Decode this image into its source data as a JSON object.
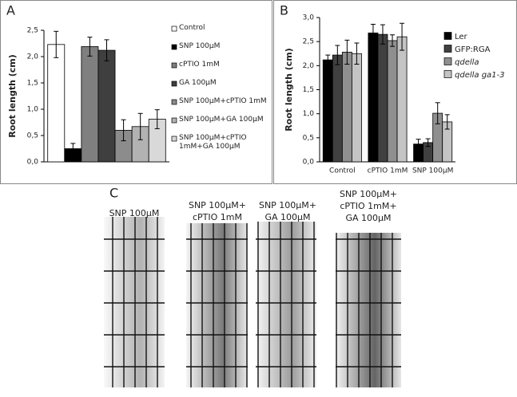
{
  "chart_data": [
    {
      "type": "bar",
      "ylabel": "Root length (cm)",
      "categories": [
        null
      ],
      "ylim": [
        0,
        2.5
      ],
      "yticks": [
        {
          "value": 0,
          "label": "0,0"
        },
        {
          "value": 0.5,
          "label": "0,5"
        },
        {
          "value": 1,
          "label": "1,0"
        },
        {
          "value": 1.5,
          "label": "1,5"
        },
        {
          "value": 2,
          "label": "2,0"
        },
        {
          "value": 2.5,
          "label": "2,5"
        }
      ],
      "series": [
        {
          "name": "Control",
          "color": "#ffffff",
          "values": [
            2.23
          ],
          "errors": [
            0.25
          ]
        },
        {
          "name": "SNP 100µM",
          "color": "#000000",
          "values": [
            0.25
          ],
          "errors": [
            0.1
          ]
        },
        {
          "name": "cPTIO 1mM",
          "color": "#7f7f7f",
          "values": [
            2.19
          ],
          "errors": [
            0.18
          ]
        },
        {
          "name": "GA 100µM",
          "color": "#3f3f3f",
          "values": [
            2.12
          ],
          "errors": [
            0.2
          ]
        },
        {
          "name": "SNP 100µM+cPTIO 1mM",
          "color": "#8c8c8c",
          "values": [
            0.6
          ],
          "errors": [
            0.2
          ]
        },
        {
          "name": "SNP 100µM+GA 100µM",
          "color": "#b2b2b2",
          "values": [
            0.67
          ],
          "errors": [
            0.25
          ]
        },
        {
          "name": "SNP 100µM+cPTIO 1mM+GA 100µM",
          "color": "#d9d9d9",
          "values": [
            0.81
          ],
          "errors": [
            0.18
          ]
        }
      ]
    },
    {
      "type": "bar",
      "ylabel": "Root length (cm)",
      "categories": [
        "Control",
        "cPTIO 1mM",
        "SNP 100µM"
      ],
      "ylim": [
        0,
        3
      ],
      "yticks": [
        {
          "value": 0,
          "label": "0,0"
        },
        {
          "value": 0.5,
          "label": "0,5"
        },
        {
          "value": 1,
          "label": "1,0"
        },
        {
          "value": 1.5,
          "label": "1,5"
        },
        {
          "value": 2,
          "label": "2,0"
        },
        {
          "value": 2.5,
          "label": "2,5"
        },
        {
          "value": 3,
          "label": "3,0"
        }
      ],
      "series": [
        {
          "name": "Ler",
          "color": "#000000",
          "values": [
            2.12,
            2.68,
            0.37
          ],
          "errors": [
            0.1,
            0.18,
            0.1
          ]
        },
        {
          "name": "GFP:RGA",
          "color": "#404040",
          "values": [
            2.22,
            2.65,
            0.4
          ],
          "errors": [
            0.2,
            0.2,
            0.08
          ]
        },
        {
          "name": "qdella",
          "color": "#8f8f8f",
          "values": [
            2.28,
            2.52,
            1.01
          ],
          "errors": [
            0.25,
            0.12,
            0.22
          ]
        },
        {
          "name": "qdella ga1-3",
          "color": "#c4c4c4",
          "values": [
            2.25,
            2.6,
            0.83
          ],
          "errors": [
            0.22,
            0.28,
            0.15
          ]
        }
      ]
    }
  ],
  "panels": [
    "A",
    "B",
    "C"
  ],
  "captions": [
    [
      "SNP 100µM"
    ],
    [
      "SNP 100µM+",
      "cPTIO 1mM"
    ],
    [
      "SNP 100µM+",
      "GA 100µM"
    ],
    [
      "SNP 100µM+",
      "cPTIO 1mM+",
      "GA 100µM"
    ]
  ]
}
